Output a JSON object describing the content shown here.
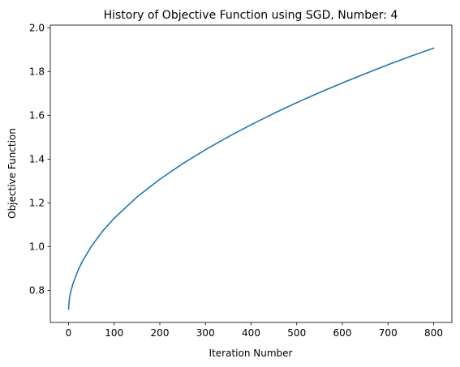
{
  "chart_data": {
    "type": "line",
    "title": "History of Objective Function using SGD, Number: 4",
    "xlabel": "Iteration Number",
    "ylabel": "Objective Function",
    "xlim": [
      -40,
      840
    ],
    "ylim": [
      0.654,
      2.012
    ],
    "xticks": [
      0,
      100,
      200,
      300,
      400,
      500,
      600,
      700,
      800
    ],
    "yticks": [
      0.8,
      1.0,
      1.2,
      1.4,
      1.6,
      1.8,
      2.0
    ],
    "xtick_labels": [
      "0",
      "100",
      "200",
      "300",
      "400",
      "500",
      "600",
      "700",
      "800"
    ],
    "ytick_labels": [
      "0.8",
      "1.0",
      "1.2",
      "1.4",
      "1.6",
      "1.8",
      "2.0"
    ],
    "grid": false,
    "series": [
      {
        "color": "#1f77b4",
        "x": [
          0,
          2,
          5,
          10,
          20,
          30,
          50,
          75,
          100,
          150,
          200,
          250,
          300,
          350,
          400,
          450,
          500,
          550,
          600,
          650,
          700,
          750,
          800
        ],
        "y": [
          0.715,
          0.766,
          0.796,
          0.833,
          0.888,
          0.932,
          1.002,
          1.072,
          1.13,
          1.227,
          1.308,
          1.379,
          1.443,
          1.502,
          1.557,
          1.609,
          1.658,
          1.704,
          1.748,
          1.79,
          1.831,
          1.87,
          1.907
        ]
      }
    ]
  }
}
